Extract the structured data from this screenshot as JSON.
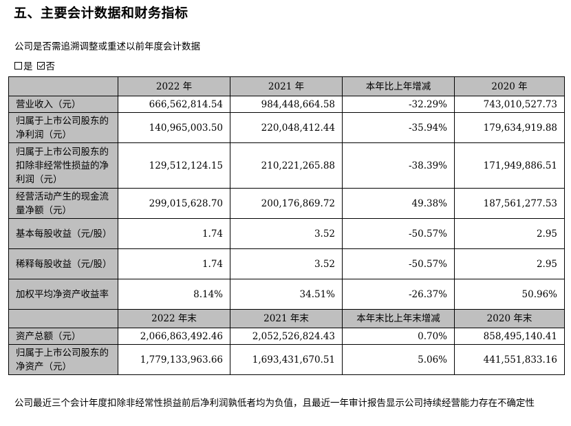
{
  "heading": "五、主要会计数据和财务指标",
  "question": "公司是否需追溯调整或重述以前年度会计数据",
  "options": [
    {
      "label": "是",
      "checked": false
    },
    {
      "label": "否",
      "checked": true
    }
  ],
  "table": {
    "header1": [
      "",
      "2022 年",
      "2021 年",
      "本年比上年增减",
      "2020 年"
    ],
    "rows1": [
      {
        "label": "营业收入（元）",
        "values": [
          "666,562,814.54",
          "984,448,664.58",
          "-32.29%",
          "743,010,527.73"
        ]
      },
      {
        "label": "归属于上市公司股东的净利润（元）",
        "values": [
          "140,965,003.50",
          "220,048,412.44",
          "-35.94%",
          "179,634,919.88"
        ]
      },
      {
        "label": "归属于上市公司股东的扣除非经常性损益的净利润（元）",
        "values": [
          "129,512,124.15",
          "210,221,265.88",
          "-38.39%",
          "171,949,886.51"
        ]
      },
      {
        "label": "经营活动产生的现金流量净额（元）",
        "values": [
          "299,015,628.70",
          "200,176,869.72",
          "49.38%",
          "187,561,277.53"
        ]
      },
      {
        "label": "基本每股收益（元/股）",
        "values": [
          "1.74",
          "3.52",
          "-50.57%",
          "2.95"
        ]
      },
      {
        "label": "稀释每股收益（元/股）",
        "values": [
          "1.74",
          "3.52",
          "-50.57%",
          "2.95"
        ]
      },
      {
        "label": "加权平均净资产收益率",
        "values": [
          "8.14%",
          "34.51%",
          "-26.37%",
          "50.96%"
        ]
      }
    ],
    "header2": [
      "",
      "2022 年末",
      "2021 年末",
      "本年末比上年末增减",
      "2020 年末"
    ],
    "rows2": [
      {
        "label": "资产总额（元）",
        "values": [
          "2,066,863,492.46",
          "2,052,526,824.43",
          "0.70%",
          "858,495,140.41"
        ]
      },
      {
        "label": "归属于上市公司股东的净资产（元）",
        "values": [
          "1,779,133,963.66",
          "1,693,431,670.51",
          "5.06%",
          "441,551,833.16"
        ]
      }
    ]
  },
  "note": "公司最近三个会计年度扣除非经常性损益前后净利润孰低者均为负值，且最近一年审计报告显示公司持续经营能力存在不确定性"
}
